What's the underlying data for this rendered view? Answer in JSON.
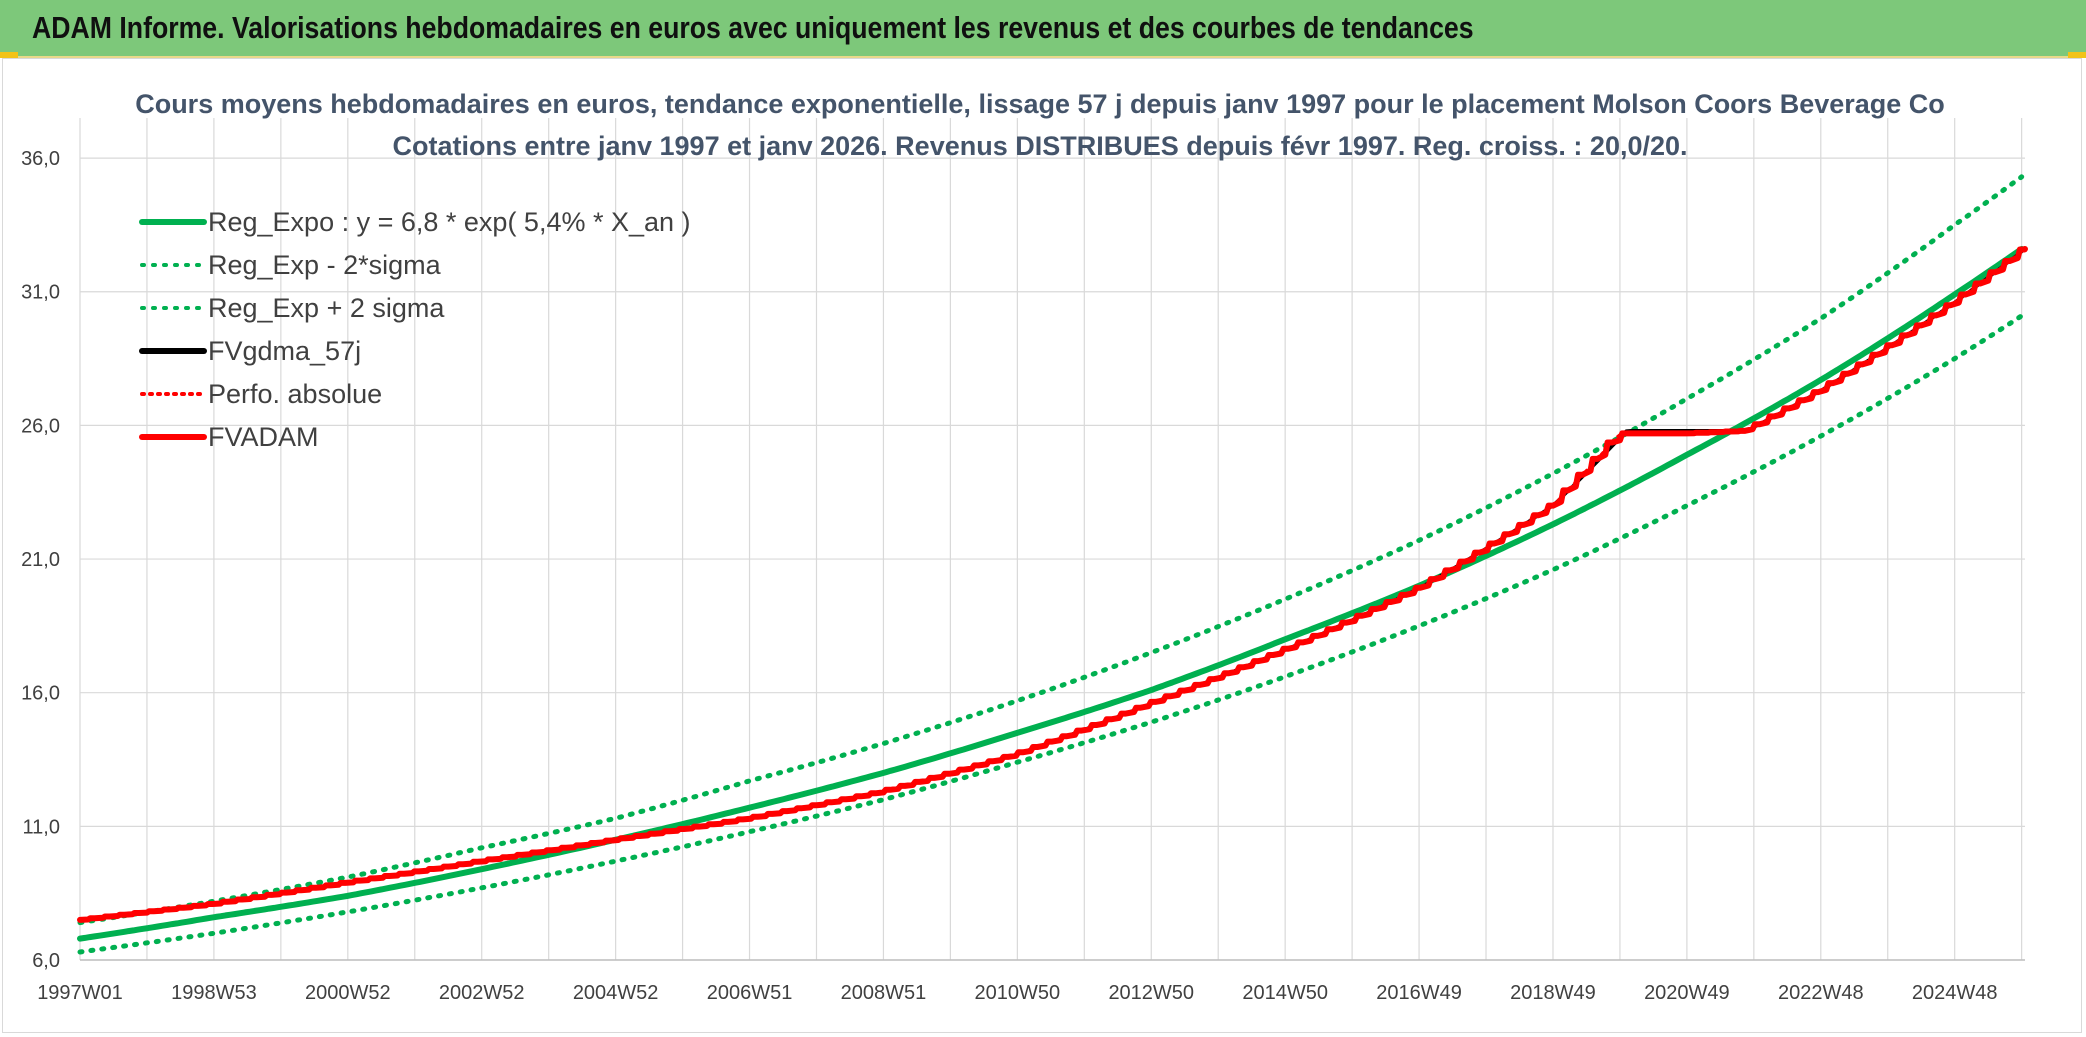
{
  "banner": {
    "title": "ADAM Informe. Valorisations hebdomadaires en euros avec uniquement les revenus et des courbes de tendances"
  },
  "colors": {
    "banner_bg": "#7dc87a",
    "green": "#00b050",
    "red": "#ff0000",
    "black": "#000000",
    "grid": "#d9d9d9",
    "text": "#404040",
    "title": "#44546a"
  },
  "chart_data": {
    "type": "line",
    "title_line1": "Cours moyens hebdomadaires en euros, tendance exponentielle, lissage 57 j depuis janv 1997 pour le placement Molson Coors Beverage Co",
    "title_line2": "Cotations entre janv 1997 et janv 2026. Revenus DISTRIBUES depuis févr 1997. Reg. croiss. : 20,0/20.",
    "ylim": [
      6.0,
      37.5
    ],
    "x_range_years": [
      1997.0,
      2026.05
    ],
    "y_ticks": [
      "6,0",
      "11,0",
      "16,0",
      "21,0",
      "26,0",
      "31,0",
      "36,0"
    ],
    "y_tick_values": [
      6,
      11,
      16,
      21,
      26,
      31,
      36
    ],
    "x_ticks": [
      "1997W01",
      "1998W53",
      "2000W52",
      "2002W52",
      "2004W52",
      "2006W51",
      "2008W51",
      "2010W50",
      "2012W50",
      "2014W50",
      "2016W49",
      "2018W49",
      "2020W49",
      "2022W48",
      "2024W48"
    ],
    "x_tick_years": [
      1997.0,
      1999.0,
      2001.0,
      2003.0,
      2005.0,
      2007.0,
      2009.0,
      2011.0,
      2013.0,
      2015.0,
      2017.0,
      2019.0,
      2021.0,
      2023.0,
      2025.0
    ],
    "legend_position": "top-left",
    "series": [
      {
        "name": "Reg_Expo : y = 6,8 * exp( 5,4% *  X_an )",
        "color": "#00b050",
        "style": "solid",
        "x": [
          1997.0,
          1999.0,
          2001.0,
          2003.0,
          2005.0,
          2007.0,
          2009.0,
          2011.0,
          2013.0,
          2015.0,
          2017.0,
          2019.0,
          2021.0,
          2023.0,
          2025.0,
          2026.0
        ],
        "values": [
          6.8,
          7.6,
          8.4,
          9.4,
          10.5,
          11.7,
          13.0,
          14.5,
          16.1,
          18.0,
          20.0,
          22.3,
          24.9,
          27.7,
          30.9,
          32.6
        ]
      },
      {
        "name": "Reg_Exp - 2*sigma",
        "color": "#00b050",
        "style": "dotted",
        "x": [
          1997.0,
          1999.0,
          2001.0,
          2003.0,
          2005.0,
          2007.0,
          2009.0,
          2011.0,
          2013.0,
          2015.0,
          2017.0,
          2019.0,
          2021.0,
          2023.0,
          2025.0,
          2026.0
        ],
        "values": [
          6.3,
          7.0,
          7.8,
          8.7,
          9.7,
          10.8,
          12.0,
          13.4,
          14.9,
          16.6,
          18.5,
          20.6,
          23.0,
          25.6,
          28.5,
          30.1
        ]
      },
      {
        "name": "Reg_Exp + 2 sigma",
        "color": "#00b050",
        "style": "dotted",
        "x": [
          1997.0,
          1999.0,
          2001.0,
          2003.0,
          2005.0,
          2007.0,
          2009.0,
          2011.0,
          2013.0,
          2015.0,
          2017.0,
          2019.0,
          2021.0,
          2023.0,
          2025.0,
          2026.0
        ],
        "values": [
          7.4,
          8.2,
          9.1,
          10.2,
          11.3,
          12.7,
          14.1,
          15.7,
          17.5,
          19.5,
          21.7,
          24.2,
          27.0,
          30.0,
          33.5,
          35.3
        ]
      },
      {
        "name": "FVgdma_57j",
        "color": "#000000",
        "style": "solid",
        "x": [
          1997.0,
          1999.0,
          2001.0,
          2003.0,
          2005.0,
          2007.0,
          2009.0,
          2011.0,
          2013.0,
          2015.0,
          2017.0,
          2019.0,
          2020.1,
          2021.0,
          2021.9,
          2023.0,
          2025.0,
          2026.05
        ],
        "values": [
          7.5,
          8.1,
          8.9,
          9.7,
          10.5,
          11.3,
          12.3,
          13.7,
          15.6,
          17.6,
          19.9,
          23.0,
          25.8,
          25.8,
          25.8,
          27.3,
          30.6,
          32.6
        ]
      },
      {
        "name": "Perfo. absolue",
        "color": "#ff0000",
        "style": "dotted",
        "x": [
          1997.0,
          1999.0,
          2001.0,
          2003.0,
          2005.0,
          2007.0,
          2009.0,
          2011.0,
          2013.0,
          2015.0,
          2017.0,
          2019.0,
          2020.0,
          2021.0,
          2021.9,
          2023.0,
          2025.0,
          2026.05
        ],
        "values": [
          7.5,
          8.1,
          8.9,
          9.7,
          10.5,
          11.3,
          12.3,
          13.7,
          15.6,
          17.6,
          19.9,
          23.0,
          25.7,
          25.7,
          25.8,
          27.3,
          30.6,
          32.6
        ]
      },
      {
        "name": "FVADAM",
        "color": "#ff0000",
        "style": "thick-stepped",
        "x": [
          1997.0,
          1999.0,
          2001.0,
          2003.0,
          2005.0,
          2007.0,
          2009.0,
          2011.0,
          2013.0,
          2015.0,
          2017.0,
          2019.0,
          2020.0,
          2021.0,
          2021.9,
          2023.0,
          2025.0,
          2026.05
        ],
        "values": [
          7.5,
          8.1,
          8.9,
          9.7,
          10.5,
          11.3,
          12.3,
          13.7,
          15.6,
          17.6,
          19.9,
          23.0,
          25.7,
          25.7,
          25.8,
          27.3,
          30.6,
          32.6
        ]
      }
    ]
  }
}
